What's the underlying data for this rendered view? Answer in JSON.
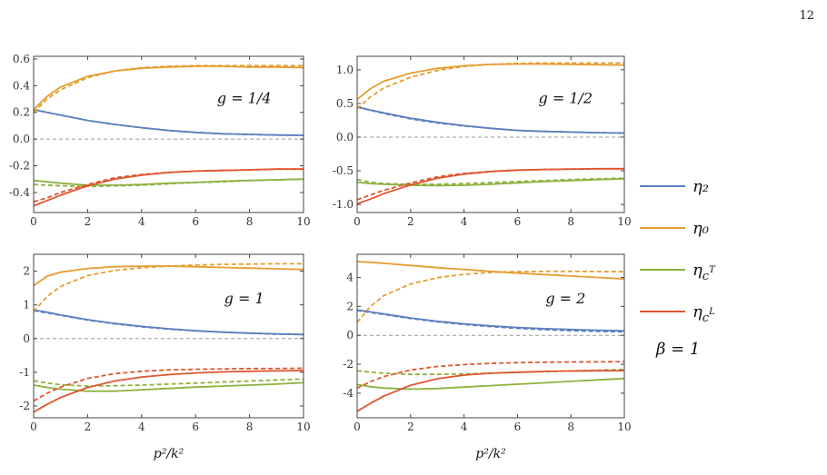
{
  "page_number": "12",
  "x_label": "p²/k²",
  "legend": [
    {
      "key": "eta2",
      "label": "η₂",
      "color": "#5b7fbf"
    },
    {
      "key": "eta0",
      "label": "η₀",
      "color": "#e59d2f"
    },
    {
      "key": "etacT",
      "label": "η_{c^T}",
      "color": "#8db13f"
    },
    {
      "key": "etacL",
      "label": "η_{c^L}",
      "color": "#e0552f"
    }
  ],
  "beta_label": "β = 1",
  "chart_data": [
    {
      "type": "line",
      "panel_label": "g = 1/4",
      "xlim": [
        0,
        10
      ],
      "ylim": [
        -0.55,
        0.62
      ],
      "xticks": [
        0,
        2,
        4,
        6,
        8,
        10
      ],
      "xtick_labels": [
        "0",
        "2",
        "4",
        "6",
        "8",
        "10"
      ],
      "yticks": [
        -0.4,
        -0.2,
        0.0,
        0.2,
        0.4,
        0.6
      ],
      "ytick_labels": [
        "-0.4",
        "-0.2",
        "0.0",
        "0.2",
        "0.4",
        "0.6"
      ],
      "zero_line": true,
      "x": [
        0,
        0.5,
        1,
        2,
        3,
        4,
        5,
        6,
        7,
        8,
        9,
        10
      ],
      "series": [
        {
          "name": "η₂",
          "style": "solid",
          "values": [
            0.22,
            0.2,
            0.18,
            0.14,
            0.11,
            0.085,
            0.065,
            0.05,
            0.04,
            0.035,
            0.03,
            0.028
          ]
        },
        {
          "name": "η₂",
          "style": "dashed",
          "values": [
            0.22,
            0.2,
            0.18,
            0.14,
            0.11,
            0.085,
            0.065,
            0.05,
            0.04,
            0.035,
            0.03,
            0.028
          ]
        },
        {
          "name": "η₀",
          "style": "solid",
          "values": [
            0.22,
            0.32,
            0.39,
            0.47,
            0.51,
            0.53,
            0.54,
            0.545,
            0.545,
            0.54,
            0.54,
            0.535
          ]
        },
        {
          "name": "η₀",
          "style": "dashed",
          "values": [
            0.2,
            0.3,
            0.37,
            0.46,
            0.51,
            0.535,
            0.545,
            0.55,
            0.55,
            0.55,
            0.55,
            0.55
          ]
        },
        {
          "name": "η_{c^T}",
          "style": "solid",
          "values": [
            -0.31,
            -0.32,
            -0.33,
            -0.345,
            -0.345,
            -0.34,
            -0.33,
            -0.325,
            -0.315,
            -0.31,
            -0.305,
            -0.3
          ]
        },
        {
          "name": "η_{c^T}",
          "style": "dashed",
          "values": [
            -0.34,
            -0.345,
            -0.35,
            -0.355,
            -0.35,
            -0.345,
            -0.335,
            -0.325,
            -0.32,
            -0.31,
            -0.305,
            -0.3
          ]
        },
        {
          "name": "η_{c^L}",
          "style": "solid",
          "values": [
            -0.5,
            -0.46,
            -0.42,
            -0.35,
            -0.3,
            -0.27,
            -0.25,
            -0.24,
            -0.235,
            -0.23,
            -0.225,
            -0.225
          ]
        },
        {
          "name": "η_{c^L}",
          "style": "dashed",
          "values": [
            -0.47,
            -0.44,
            -0.4,
            -0.34,
            -0.29,
            -0.265,
            -0.25,
            -0.24,
            -0.235,
            -0.23,
            -0.225,
            -0.225
          ]
        }
      ]
    },
    {
      "type": "line",
      "panel_label": "g = 1/2",
      "xlim": [
        0,
        10
      ],
      "ylim": [
        -1.12,
        1.2
      ],
      "xticks": [
        0,
        2,
        4,
        6,
        8,
        10
      ],
      "xtick_labels": [
        "0",
        "2",
        "4",
        "6",
        "8",
        "10"
      ],
      "yticks": [
        -1.0,
        -0.5,
        0.0,
        0.5,
        1.0
      ],
      "ytick_labels": [
        "-1.0",
        "-0.5",
        "0.0",
        "0.5",
        "1.0"
      ],
      "zero_line": true,
      "x": [
        0,
        0.5,
        1,
        2,
        3,
        4,
        5,
        6,
        7,
        8,
        9,
        10
      ],
      "series": [
        {
          "name": "η₂",
          "style": "solid",
          "values": [
            0.45,
            0.4,
            0.36,
            0.28,
            0.22,
            0.17,
            0.13,
            0.1,
            0.085,
            0.075,
            0.065,
            0.06
          ]
        },
        {
          "name": "η₂",
          "style": "dashed",
          "values": [
            0.44,
            0.4,
            0.35,
            0.27,
            0.21,
            0.165,
            0.13,
            0.1,
            0.085,
            0.075,
            0.065,
            0.06
          ]
        },
        {
          "name": "η₀",
          "style": "solid",
          "values": [
            0.56,
            0.72,
            0.83,
            0.95,
            1.02,
            1.06,
            1.08,
            1.085,
            1.085,
            1.08,
            1.075,
            1.07
          ]
        },
        {
          "name": "η₀",
          "style": "dashed",
          "values": [
            0.42,
            0.6,
            0.73,
            0.89,
            0.99,
            1.05,
            1.08,
            1.095,
            1.1,
            1.1,
            1.1,
            1.1
          ]
        },
        {
          "name": "η_{c^T}",
          "style": "solid",
          "values": [
            -0.67,
            -0.69,
            -0.7,
            -0.715,
            -0.72,
            -0.715,
            -0.7,
            -0.68,
            -0.66,
            -0.645,
            -0.63,
            -0.62
          ]
        },
        {
          "name": "η_{c^T}",
          "style": "dashed",
          "values": [
            -0.63,
            -0.67,
            -0.69,
            -0.7,
            -0.7,
            -0.69,
            -0.675,
            -0.66,
            -0.645,
            -0.63,
            -0.62,
            -0.61
          ]
        },
        {
          "name": "η_{c^L}",
          "style": "solid",
          "values": [
            -0.99,
            -0.92,
            -0.84,
            -0.71,
            -0.61,
            -0.55,
            -0.51,
            -0.49,
            -0.48,
            -0.475,
            -0.47,
            -0.47
          ]
        },
        {
          "name": "η_{c^L}",
          "style": "dashed",
          "values": [
            -0.93,
            -0.86,
            -0.79,
            -0.68,
            -0.59,
            -0.54,
            -0.51,
            -0.49,
            -0.48,
            -0.475,
            -0.47,
            -0.47
          ]
        }
      ]
    },
    {
      "type": "line",
      "panel_label": "g = 1",
      "xlim": [
        0,
        10
      ],
      "ylim": [
        -2.35,
        2.5
      ],
      "xticks": [
        0,
        2,
        4,
        6,
        8,
        10
      ],
      "xtick_labels": [
        "0",
        "2",
        "4",
        "6",
        "8",
        "10"
      ],
      "yticks": [
        -2,
        -1,
        0,
        1,
        2
      ],
      "ytick_labels": [
        "-2",
        "-1",
        "0",
        "1",
        "2"
      ],
      "zero_line": true,
      "x": [
        0,
        0.5,
        1,
        2,
        3,
        4,
        5,
        6,
        7,
        8,
        9,
        10
      ],
      "series": [
        {
          "name": "η₂",
          "style": "solid",
          "values": [
            0.85,
            0.78,
            0.7,
            0.56,
            0.45,
            0.36,
            0.29,
            0.23,
            0.19,
            0.16,
            0.14,
            0.12
          ]
        },
        {
          "name": "η₂",
          "style": "dashed",
          "values": [
            0.83,
            0.76,
            0.69,
            0.55,
            0.44,
            0.35,
            0.28,
            0.23,
            0.19,
            0.16,
            0.13,
            0.12
          ]
        },
        {
          "name": "η₀",
          "style": "solid",
          "values": [
            1.57,
            1.85,
            1.97,
            2.08,
            2.13,
            2.15,
            2.15,
            2.13,
            2.11,
            2.09,
            2.07,
            2.05
          ]
        },
        {
          "name": "η₀",
          "style": "dashed",
          "values": [
            0.8,
            1.25,
            1.55,
            1.87,
            2.02,
            2.1,
            2.15,
            2.18,
            2.2,
            2.21,
            2.22,
            2.22
          ]
        },
        {
          "name": "η_{c^T}",
          "style": "solid",
          "values": [
            -1.38,
            -1.45,
            -1.5,
            -1.56,
            -1.56,
            -1.52,
            -1.48,
            -1.44,
            -1.41,
            -1.38,
            -1.35,
            -1.31
          ]
        },
        {
          "name": "η_{c^T}",
          "style": "dashed",
          "values": [
            -1.25,
            -1.32,
            -1.37,
            -1.41,
            -1.4,
            -1.38,
            -1.35,
            -1.32,
            -1.29,
            -1.26,
            -1.23,
            -1.2
          ]
        },
        {
          "name": "η_{c^L}",
          "style": "solid",
          "values": [
            -2.18,
            -1.95,
            -1.75,
            -1.45,
            -1.26,
            -1.14,
            -1.07,
            -1.02,
            -0.99,
            -0.97,
            -0.96,
            -0.95
          ]
        },
        {
          "name": "η_{c^L}",
          "style": "dashed",
          "values": [
            -1.85,
            -1.62,
            -1.44,
            -1.18,
            -1.04,
            -0.97,
            -0.93,
            -0.91,
            -0.9,
            -0.89,
            -0.89,
            -0.88
          ]
        }
      ]
    },
    {
      "type": "line",
      "panel_label": "g = 2",
      "xlim": [
        0,
        10
      ],
      "ylim": [
        -5.7,
        5.6
      ],
      "xticks": [
        0,
        2,
        4,
        6,
        8,
        10
      ],
      "xtick_labels": [
        "0",
        "2",
        "4",
        "6",
        "8",
        "10"
      ],
      "yticks": [
        -4,
        -2,
        0,
        2,
        4
      ],
      "ytick_labels": [
        "-4",
        "-2",
        "0",
        "2",
        "4"
      ],
      "zero_line": true,
      "x": [
        0,
        0.5,
        1,
        2,
        3,
        4,
        5,
        6,
        7,
        8,
        9,
        10
      ],
      "series": [
        {
          "name": "η₂",
          "style": "solid",
          "values": [
            1.75,
            1.62,
            1.48,
            1.2,
            0.97,
            0.79,
            0.65,
            0.54,
            0.46,
            0.4,
            0.35,
            0.31
          ]
        },
        {
          "name": "η₂",
          "style": "dashed",
          "values": [
            1.72,
            1.58,
            1.44,
            1.16,
            0.93,
            0.75,
            0.6,
            0.48,
            0.39,
            0.32,
            0.27,
            0.23
          ]
        },
        {
          "name": "η₀",
          "style": "solid",
          "values": [
            5.1,
            5.05,
            4.98,
            4.83,
            4.68,
            4.55,
            4.42,
            4.3,
            4.2,
            4.1,
            4.0,
            3.9
          ]
        },
        {
          "name": "η₀",
          "style": "dashed",
          "values": [
            0.9,
            2.0,
            2.75,
            3.55,
            3.98,
            4.22,
            4.35,
            4.4,
            4.42,
            4.42,
            4.41,
            4.4
          ]
        },
        {
          "name": "η_{c^T}",
          "style": "solid",
          "values": [
            -3.4,
            -3.55,
            -3.65,
            -3.72,
            -3.68,
            -3.58,
            -3.48,
            -3.38,
            -3.28,
            -3.18,
            -3.08,
            -2.98
          ]
        },
        {
          "name": "η_{c^T}",
          "style": "dashed",
          "values": [
            -2.45,
            -2.55,
            -2.62,
            -2.7,
            -2.7,
            -2.67,
            -2.62,
            -2.57,
            -2.51,
            -2.46,
            -2.41,
            -2.36
          ]
        },
        {
          "name": "η_{c^L}",
          "style": "solid",
          "values": [
            -5.25,
            -4.7,
            -4.2,
            -3.45,
            -3.0,
            -2.75,
            -2.62,
            -2.55,
            -2.5,
            -2.47,
            -2.45,
            -2.44
          ]
        },
        {
          "name": "η_{c^L}",
          "style": "dashed",
          "values": [
            -3.65,
            -3.2,
            -2.85,
            -2.4,
            -2.15,
            -2.02,
            -1.94,
            -1.89,
            -1.86,
            -1.84,
            -1.83,
            -1.82
          ]
        }
      ]
    }
  ]
}
